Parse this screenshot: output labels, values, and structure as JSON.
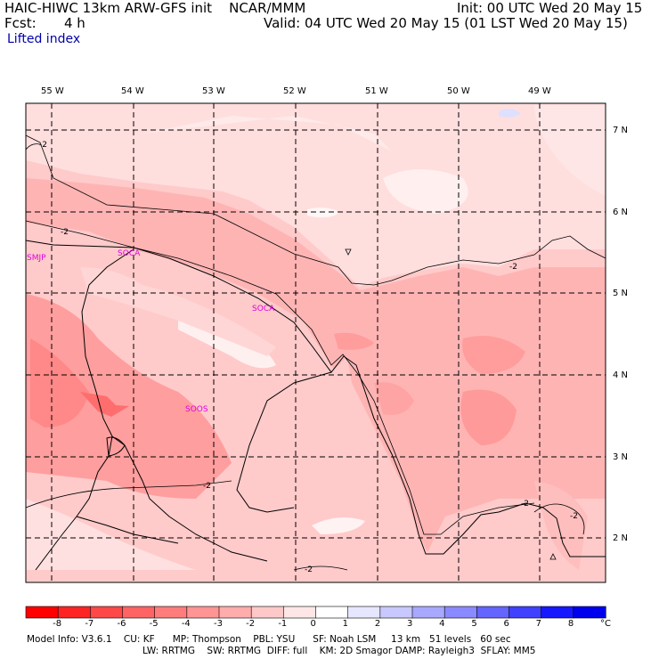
{
  "header": {
    "title": "HAIC-HIWC 13km ARW-GFS init    NCAR/MMM",
    "init": "Init: 00 UTC Wed 20 May 15",
    "forecast_label": "Fcst:",
    "forecast_hours": "4 h",
    "valid": "Valid: 04 UTC Wed 20 May 15 (01 LST Wed 20 May 15)",
    "field": "Lifted index"
  },
  "lon_labels": [
    "55 W",
    "54 W",
    "53 W",
    "52 W",
    "51 W",
    "50 W",
    "49 W"
  ],
  "lat_labels": [
    "7 N",
    "6 N",
    "5 N",
    "4 N",
    "3 N",
    "2 N"
  ],
  "stations": [
    "SMJP",
    "SOCA",
    "SOOS"
  ],
  "stations_extra": [
    "SOCA"
  ],
  "contour_labels": [
    "-2",
    "-2",
    "-2",
    "-2",
    "-2",
    "-2",
    "-2"
  ],
  "colorbar": {
    "labels": [
      "-8",
      "-7",
      "-6",
      "-5",
      "-4",
      "-3",
      "-2",
      "-1",
      "0",
      "1",
      "2",
      "3",
      "4",
      "5",
      "6",
      "7",
      "8"
    ],
    "unit": "°C",
    "colors": [
      "#ff0000",
      "#ff2424",
      "#ff4848",
      "#ff6464",
      "#ff7c7c",
      "#ff9494",
      "#ffacac",
      "#ffc8c8",
      "#ffe6e6",
      "#ffffff",
      "#e6e6ff",
      "#c8c8ff",
      "#a8a8ff",
      "#8a8aff",
      "#6464ff",
      "#4040ff",
      "#1818ff",
      "#0000ee"
    ]
  },
  "footer": {
    "line1": "Model Info: V3.6.1    CU: KF      MP: Thompson    PBL: YSU      SF: Noah LSM     13 km   51 levels   60 sec",
    "line2": "LW: RRTMG    SW: RRTMG  DIFF: full    KM: 2D Smagor DAMP: Rayleigh3  SFLAY: MM5"
  }
}
